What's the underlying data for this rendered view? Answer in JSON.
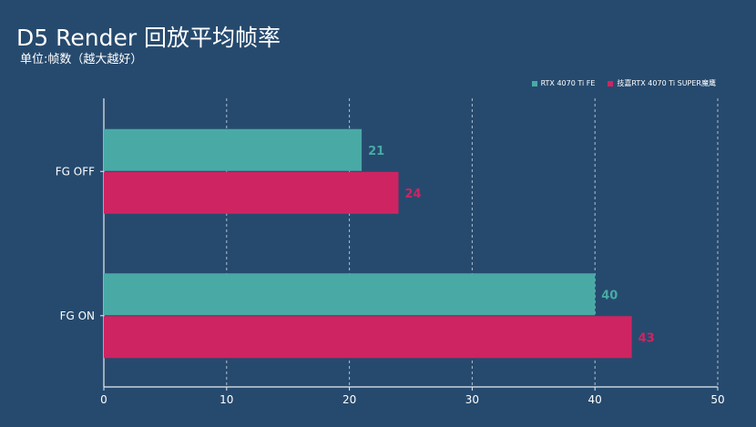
{
  "chart_data": {
    "type": "bar",
    "orientation": "horizontal",
    "title": "D5 Render 回放平均帧率",
    "subtitle": "单位:帧数（越大越好）",
    "categories": [
      "FG OFF",
      "FG ON"
    ],
    "series": [
      {
        "name": "RTX 4070 Ti FE",
        "values": [
          21,
          40
        ],
        "color": "#49aaa5"
      },
      {
        "name": "技嘉RTX 4070 Ti SUPER魔鹰",
        "values": [
          24,
          43
        ],
        "color": "#cf2462"
      }
    ],
    "xlim": [
      0,
      50
    ],
    "xticks": [
      0,
      10,
      20,
      30,
      40,
      50
    ],
    "grid": true,
    "legend_position": "top-right",
    "xlabel": "",
    "ylabel": ""
  },
  "colors": {
    "background": "#264a6e",
    "grid": "#c8d4e0",
    "text": "#ffffff"
  }
}
